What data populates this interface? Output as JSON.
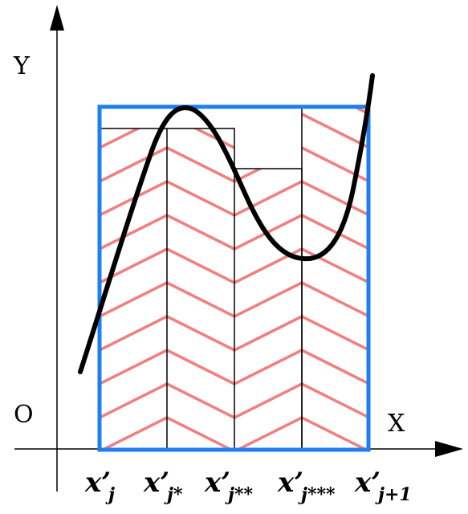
{
  "axes": {
    "y_label": "Y",
    "x_label": "X",
    "origin_label": "O"
  },
  "ticks": [
    {
      "main": "x",
      "prime": "’",
      "sub": "j"
    },
    {
      "main": "x",
      "prime": "’",
      "sub": "j*"
    },
    {
      "main": "x",
      "prime": "’",
      "sub": "j**"
    },
    {
      "main": "x",
      "prime": "’",
      "sub": "j***"
    },
    {
      "main": "x",
      "prime": "’",
      "sub": "j+1"
    }
  ],
  "colors": {
    "outer_rect": "#1e7ff0",
    "hatch": "#f08080",
    "curve": "#000000",
    "axis": "#000000",
    "strip_outline": "#000000"
  }
}
